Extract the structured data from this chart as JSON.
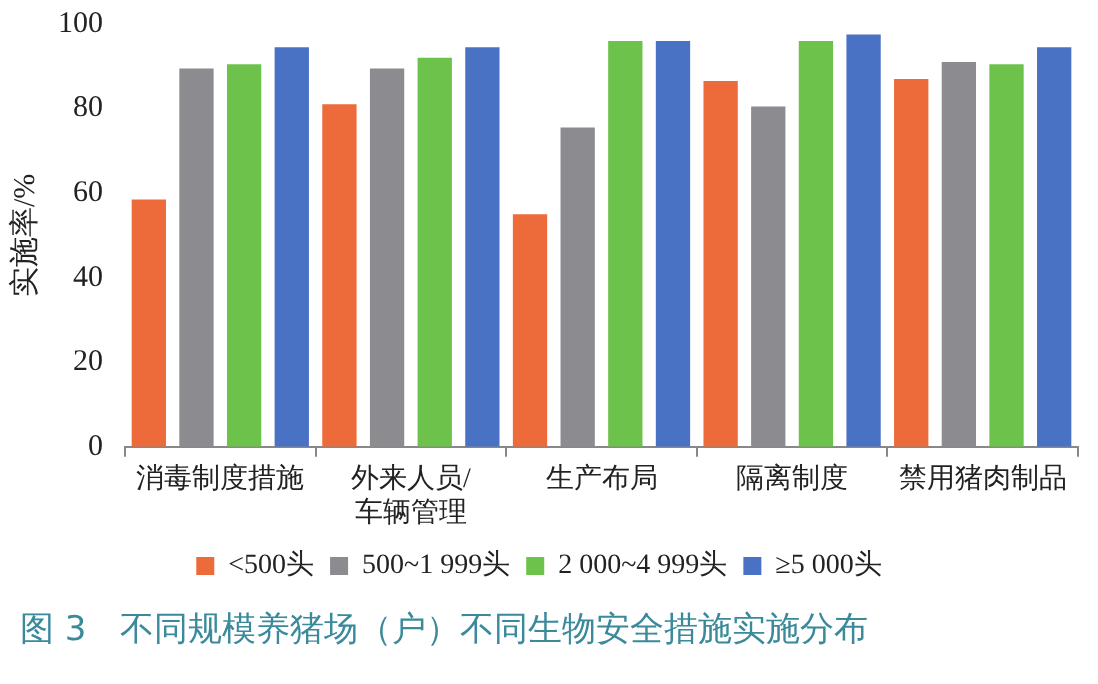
{
  "chart_data": {
    "type": "bar",
    "title": "图 3　不同规模养猪场（户）不同生物安全措施实施分布",
    "ylabel": "实施率/%",
    "categories": [
      "消毒制度措施",
      "外来人员/车辆管理",
      "生产布局",
      "隔离制度",
      "禁用猪肉制品"
    ],
    "series": [
      {
        "name": "<500头",
        "color": "#ed6a3a",
        "values": [
          58.5,
          81,
          55,
          86.5,
          87
        ]
      },
      {
        "name": "500~1 999头",
        "color": "#8c8c90",
        "values": [
          89.5,
          89.5,
          75.5,
          80.5,
          91
        ]
      },
      {
        "name": "2 000~4 999头",
        "color": "#6cc24a",
        "values": [
          90.5,
          92,
          96,
          96,
          90.5
        ]
      },
      {
        "name": "≥5 000头",
        "color": "#4a72c4",
        "values": [
          94.5,
          94.5,
          96,
          97.5,
          94.5
        ]
      }
    ],
    "ylim": [
      0,
      100
    ],
    "yticks": [
      0,
      20,
      40,
      60,
      80,
      100
    ],
    "legend": "bottom"
  }
}
